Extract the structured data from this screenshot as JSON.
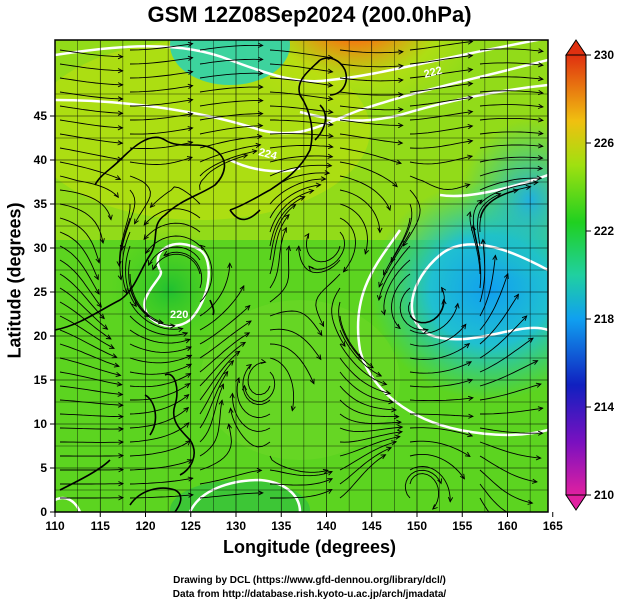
{
  "title": "GSM 12Z08Sep2024 (200.0hPa)",
  "xlabel": "Longitude (degrees)",
  "ylabel": "Latitude  (degrees)",
  "credits": [
    "Drawing by DCL (https://www.gfd-dennou.org/library/dcl/)",
    "Data from http://database.rish.kyoto-u.ac.jp/arch/jmadata/"
  ],
  "x_ticks": [
    "110",
    "115",
    "120",
    "125",
    "130",
    "135",
    "140",
    "145",
    "150",
    "155",
    "160",
    "165"
  ],
  "y_ticks": [
    "0",
    "5",
    "10",
    "15",
    "20",
    "25",
    "30",
    "35",
    "40",
    "45"
  ],
  "colorbar_ticks": [
    "230",
    "226",
    "222",
    "218",
    "214",
    "210"
  ],
  "contour_labels": [
    "224",
    "222",
    "220"
  ],
  "colors": {
    "low": "#e020a0",
    "mid": "#20d020",
    "high": "#e03010"
  }
}
